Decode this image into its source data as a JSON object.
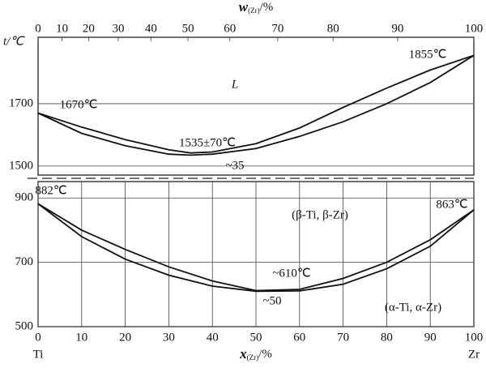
{
  "chart_data": [
    {
      "type": "line",
      "top_axis_label": [
        "w",
        "(Zr)",
        "/%"
      ],
      "y_axis_label": "t/℃",
      "x2ticks": [
        {
          "value": 0,
          "label": "0"
        },
        {
          "value": 5.5,
          "label": "10"
        },
        {
          "value": 11.6,
          "label": "20"
        },
        {
          "value": 18.4,
          "label": "30"
        },
        {
          "value": 25.9,
          "label": "40"
        },
        {
          "value": 34.4,
          "label": "50"
        },
        {
          "value": 44.0,
          "label": "60"
        },
        {
          "value": 55.0,
          "label": "70"
        },
        {
          "value": 67.7,
          "label": "80"
        },
        {
          "value": 82.5,
          "label": "90"
        },
        {
          "value": 100,
          "label": "100"
        }
      ],
      "xlim": [
        0,
        100
      ],
      "ylim": [
        1471,
        1913
      ],
      "yticks": [
        1500,
        1700
      ],
      "grid": true,
      "x": [
        0,
        10,
        20,
        30,
        35,
        40,
        50,
        60,
        70,
        80,
        90,
        100
      ],
      "series": [
        {
          "color": "#111",
          "values": [
            1670,
            1625,
            1585,
            1552,
            1542,
            1545,
            1572,
            1622,
            1688,
            1750,
            1808,
            1855
          ]
        },
        {
          "color": "#111",
          "values": [
            1670,
            1605,
            1565,
            1538,
            1535,
            1538,
            1556,
            1595,
            1642,
            1700,
            1768,
            1855
          ]
        }
      ],
      "annotations": [
        "1855℃",
        "L",
        "1670℃",
        "1535±70℃",
        "~35"
      ]
    },
    {
      "type": "line",
      "x_axis_label": [
        "x",
        "(Zr)",
        "/%"
      ],
      "end_labels": [
        "Ti",
        "Zr"
      ],
      "xlim": [
        0,
        100
      ],
      "xticks": [
        0,
        10,
        20,
        30,
        40,
        50,
        60,
        70,
        80,
        90,
        100
      ],
      "ylim": [
        500,
        951
      ],
      "yticks": [
        500,
        700,
        900
      ],
      "grid": true,
      "x": [
        0,
        10,
        20,
        30,
        40,
        50,
        60,
        70,
        80,
        90,
        100
      ],
      "series": [
        {
          "color": "#111",
          "values": [
            882,
            800,
            740,
            686,
            642,
            612,
            616,
            650,
            700,
            770,
            863
          ]
        },
        {
          "color": "#111",
          "values": [
            882,
            780,
            710,
            660,
            626,
            610,
            611,
            632,
            680,
            750,
            863
          ]
        }
      ],
      "annotations": [
        "882℃",
        "(β-Ti, β-Zr)",
        "863℃",
        "~610℃",
        "~50",
        "(α-Ti, α-Zr)"
      ]
    }
  ]
}
